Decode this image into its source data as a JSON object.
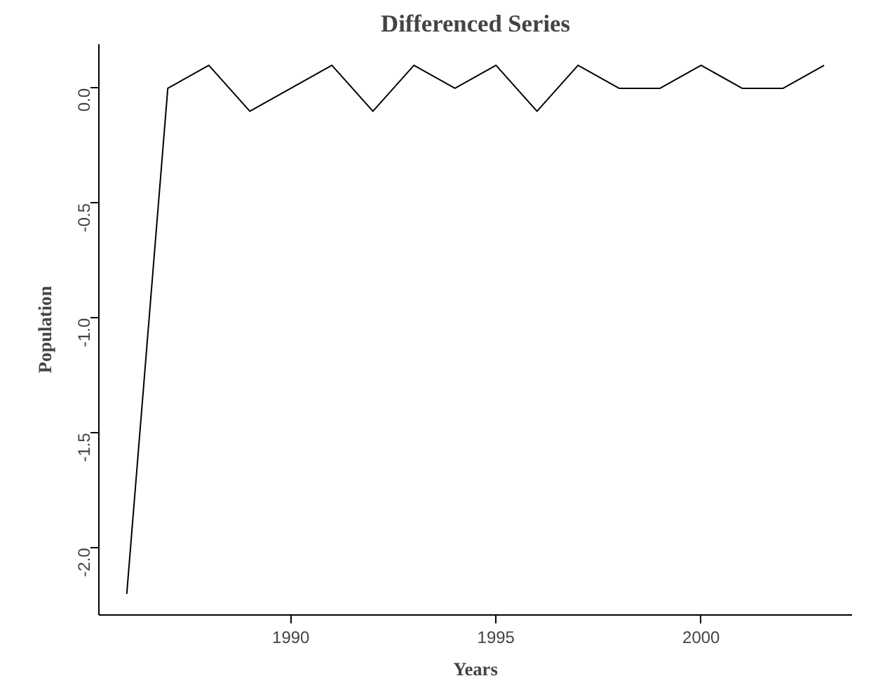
{
  "chart_data": {
    "type": "line",
    "title": "Differenced Series",
    "xlabel": "Years",
    "ylabel": "Population",
    "x": [
      1986,
      1987,
      1988,
      1989,
      1990,
      1991,
      1992,
      1993,
      1994,
      1995,
      1996,
      1997,
      1998,
      1999,
      2000,
      2001,
      2002,
      2003
    ],
    "series": [
      {
        "color": "#000000",
        "values": [
          -2.2,
          0.0,
          0.1,
          -0.1,
          0.0,
          0.1,
          -0.1,
          0.1,
          0.0,
          0.1,
          -0.1,
          0.1,
          0.0,
          0.0,
          0.1,
          0.0,
          0.0,
          0.1
        ]
      }
    ],
    "xlim": [
      1985.32,
      2003.68
    ],
    "ylim": [
      -2.292,
      0.192
    ],
    "xticks": [
      1990,
      1995,
      2000
    ],
    "yticks": [
      {
        "value": -2.0,
        "label": "-2.0"
      },
      {
        "value": -1.5,
        "label": "-1.5"
      },
      {
        "value": -1.0,
        "label": "-1.0"
      },
      {
        "value": -0.5,
        "label": "-0.5"
      },
      {
        "value": 0.0,
        "label": "0.0"
      }
    ],
    "grid": false,
    "marker": "none",
    "line_style": "solid"
  }
}
